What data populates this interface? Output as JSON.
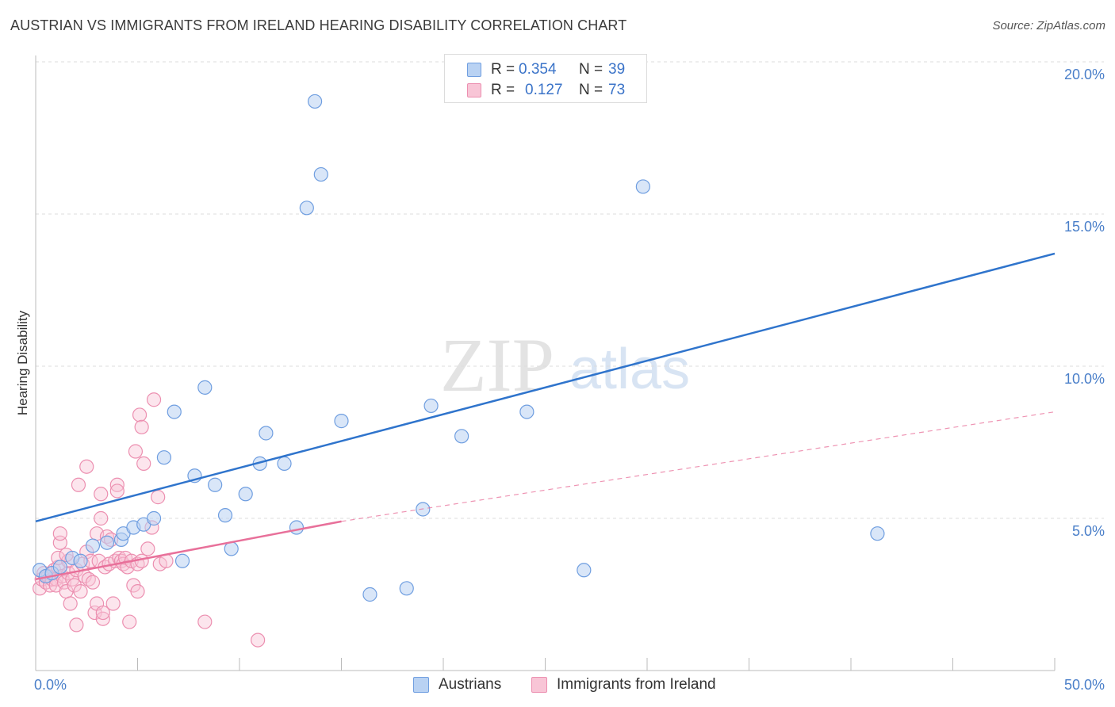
{
  "title": "AUSTRIAN VS IMMIGRANTS FROM IRELAND HEARING DISABILITY CORRELATION CHART",
  "source": "Source: ZipAtlas.com",
  "watermark": {
    "zip": "ZIP",
    "atlas": "atlas"
  },
  "legend": {
    "rows": [
      {
        "r_label": "R =",
        "r_value": "0.354",
        "n_label": "N =",
        "n_value": "39"
      },
      {
        "r_label": "R =",
        "r_value": "0.127",
        "n_label": "N =",
        "n_value": "73"
      }
    ]
  },
  "bottom_legend": {
    "austrians": "Austrians",
    "ireland": "Immigrants from Ireland"
  },
  "colors": {
    "blue_fill": "#b9d2f3",
    "blue_stroke": "#6f9ee0",
    "blue_line": "#2f74cc",
    "pink_fill": "#f8c5d6",
    "pink_stroke": "#ec8fb0",
    "pink_line": "#e8709a",
    "grid": "#dddddd",
    "tick_text": "#4a7fc9"
  },
  "chart_data": {
    "type": "scatter",
    "title": "AUSTRIAN VS IMMIGRANTS FROM IRELAND HEARING DISABILITY CORRELATION CHART",
    "xlabel": "",
    "ylabel": "Hearing Disability",
    "xlim": [
      0,
      50
    ],
    "ylim": [
      0,
      20.5
    ],
    "x_tick_labels": [
      "0.0%",
      "50.0%"
    ],
    "y_ticks": [
      5,
      10,
      15,
      20
    ],
    "y_tick_labels": [
      "5.0%",
      "10.0%",
      "15.0%",
      "20.0%"
    ],
    "grid": true,
    "series": [
      {
        "name": "Austrians",
        "color": "blue",
        "points": [
          [
            0.2,
            3.3
          ],
          [
            0.5,
            3.1
          ],
          [
            0.8,
            3.2
          ],
          [
            1.2,
            3.4
          ],
          [
            1.8,
            3.7
          ],
          [
            2.2,
            3.6
          ],
          [
            2.8,
            4.1
          ],
          [
            3.5,
            4.2
          ],
          [
            4.2,
            4.3
          ],
          [
            4.3,
            4.5
          ],
          [
            4.8,
            4.7
          ],
          [
            5.3,
            4.8
          ],
          [
            5.8,
            5.0
          ],
          [
            6.3,
            7.0
          ],
          [
            6.8,
            8.5
          ],
          [
            7.2,
            3.6
          ],
          [
            7.8,
            6.4
          ],
          [
            8.3,
            9.3
          ],
          [
            8.8,
            6.1
          ],
          [
            9.3,
            5.1
          ],
          [
            9.6,
            4.0
          ],
          [
            10.3,
            5.8
          ],
          [
            11.0,
            6.8
          ],
          [
            11.3,
            7.8
          ],
          [
            12.2,
            6.8
          ],
          [
            12.8,
            4.7
          ],
          [
            13.3,
            15.2
          ],
          [
            13.7,
            18.7
          ],
          [
            14.0,
            16.3
          ],
          [
            15.0,
            8.2
          ],
          [
            16.4,
            2.5
          ],
          [
            18.2,
            2.7
          ],
          [
            19.0,
            5.3
          ],
          [
            19.4,
            8.7
          ],
          [
            20.9,
            7.7
          ],
          [
            24.1,
            8.5
          ],
          [
            26.9,
            3.3
          ],
          [
            29.8,
            15.9
          ],
          [
            41.3,
            4.5
          ]
        ],
        "trend": {
          "x": [
            0,
            50
          ],
          "y": [
            4.9,
            13.7
          ]
        }
      },
      {
        "name": "Immigrants from Ireland",
        "color": "pink",
        "points": [
          [
            0.2,
            2.7
          ],
          [
            0.3,
            3.0
          ],
          [
            0.4,
            3.2
          ],
          [
            0.5,
            2.9
          ],
          [
            0.6,
            3.1
          ],
          [
            0.7,
            2.8
          ],
          [
            0.8,
            3.0
          ],
          [
            0.9,
            3.3
          ],
          [
            1.0,
            3.0
          ],
          [
            1.0,
            2.8
          ],
          [
            1.1,
            3.4
          ],
          [
            1.1,
            3.7
          ],
          [
            1.2,
            4.2
          ],
          [
            1.2,
            4.5
          ],
          [
            1.3,
            3.1
          ],
          [
            1.4,
            2.9
          ],
          [
            1.5,
            2.6
          ],
          [
            1.6,
            3.2
          ],
          [
            1.6,
            3.6
          ],
          [
            1.7,
            2.2
          ],
          [
            1.8,
            3.0
          ],
          [
            1.9,
            2.8
          ],
          [
            2.0,
            3.3
          ],
          [
            2.0,
            1.5
          ],
          [
            2.1,
            6.1
          ],
          [
            2.2,
            2.6
          ],
          [
            2.3,
            3.5
          ],
          [
            2.4,
            3.1
          ],
          [
            2.5,
            3.9
          ],
          [
            2.5,
            6.7
          ],
          [
            2.6,
            3.0
          ],
          [
            2.7,
            3.6
          ],
          [
            2.8,
            2.9
          ],
          [
            2.9,
            1.9
          ],
          [
            3.0,
            2.2
          ],
          [
            3.0,
            4.5
          ],
          [
            3.1,
            3.6
          ],
          [
            3.2,
            5.0
          ],
          [
            3.2,
            5.8
          ],
          [
            3.3,
            1.7
          ],
          [
            3.3,
            1.9
          ],
          [
            3.4,
            3.4
          ],
          [
            3.5,
            4.4
          ],
          [
            3.6,
            3.5
          ],
          [
            3.7,
            4.3
          ],
          [
            3.8,
            2.2
          ],
          [
            3.9,
            3.6
          ],
          [
            4.0,
            6.1
          ],
          [
            4.0,
            5.9
          ],
          [
            4.1,
            3.7
          ],
          [
            4.2,
            3.6
          ],
          [
            4.3,
            3.5
          ],
          [
            4.4,
            3.7
          ],
          [
            4.5,
            3.4
          ],
          [
            4.6,
            1.6
          ],
          [
            4.7,
            3.6
          ],
          [
            4.8,
            2.8
          ],
          [
            4.9,
            7.2
          ],
          [
            5.0,
            3.5
          ],
          [
            5.0,
            2.6
          ],
          [
            5.1,
            8.4
          ],
          [
            5.2,
            8.0
          ],
          [
            5.2,
            3.6
          ],
          [
            5.3,
            6.8
          ],
          [
            5.5,
            4.0
          ],
          [
            5.7,
            4.7
          ],
          [
            5.8,
            8.9
          ],
          [
            6.0,
            5.7
          ],
          [
            6.1,
            3.5
          ],
          [
            6.4,
            3.6
          ],
          [
            8.3,
            1.6
          ],
          [
            10.9,
            1.0
          ],
          [
            1.5,
            3.8
          ]
        ],
        "trend_solid": {
          "x": [
            0,
            15
          ],
          "y": [
            3.0,
            4.9
          ]
        },
        "trend_dashed": {
          "x": [
            15,
            50
          ],
          "y": [
            4.9,
            8.5
          ]
        }
      }
    ]
  }
}
